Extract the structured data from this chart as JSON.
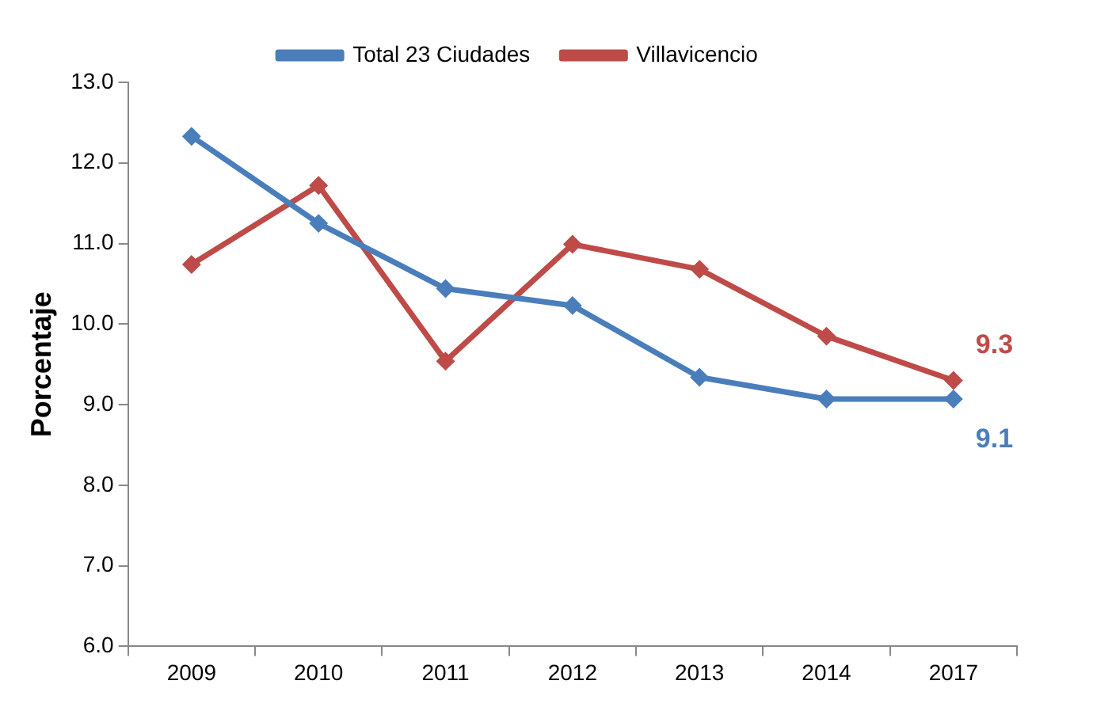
{
  "chart_data": {
    "type": "line",
    "ylabel": "Porcentaje",
    "categories": [
      "2009",
      "2010",
      "2011",
      "2012",
      "2013",
      "2014",
      "2017"
    ],
    "series": [
      {
        "name": "Total 23 Ciudades",
        "color": "#4a7ebb",
        "values": [
          12.33,
          11.25,
          10.44,
          10.23,
          9.34,
          9.07,
          9.07
        ],
        "value_labels": [
          null,
          null,
          null,
          null,
          null,
          null,
          "9.1"
        ]
      },
      {
        "name": "Villavicencio",
        "color": "#be4b48",
        "values": [
          10.74,
          11.72,
          9.54,
          10.99,
          10.68,
          9.85,
          9.3
        ],
        "value_labels": [
          null,
          null,
          null,
          null,
          null,
          null,
          "9.3"
        ]
      }
    ],
    "ylim": [
      6,
      13
    ],
    "yticks": [
      {
        "value": 6,
        "label": "6.0"
      },
      {
        "value": 7,
        "label": "7.0"
      },
      {
        "value": 8,
        "label": "8.0"
      },
      {
        "value": 9,
        "label": "9.0"
      },
      {
        "value": 10,
        "label": "10.0"
      },
      {
        "value": 11,
        "label": "11.0"
      },
      {
        "value": 12,
        "label": "12.0"
      },
      {
        "value": 13,
        "label": "13.0"
      }
    ],
    "grid": false,
    "legend": "top",
    "marker": "diamond",
    "line_style": "solid"
  }
}
